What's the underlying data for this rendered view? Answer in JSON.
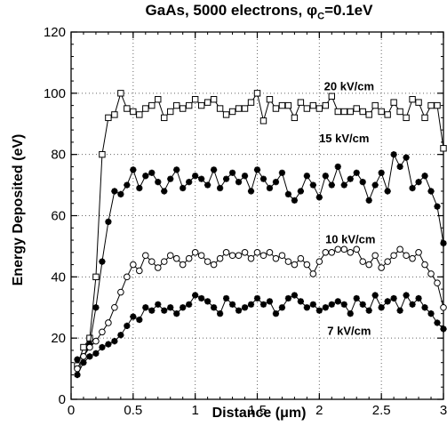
{
  "chart_data": {
    "type": "line",
    "title_parts": [
      "GaAs, 5000 electrons, ",
      "φ",
      "C",
      "=0.1eV"
    ],
    "xlabel": "Distance (μm)",
    "ylabel": "Energy Deposited (eV)",
    "xlim": [
      0,
      3
    ],
    "ylim": [
      0,
      120
    ],
    "xticks": [
      0,
      0.5,
      1,
      1.5,
      2,
      2.5,
      3
    ],
    "xtick_labels": [
      "0",
      "0.5",
      "1",
      "1.5",
      "2",
      "2.5",
      "3"
    ],
    "yticks": [
      0,
      20,
      40,
      60,
      80,
      100,
      120
    ],
    "ytick_labels": [
      "0",
      "20",
      "40",
      "60",
      "80",
      "100",
      "120"
    ],
    "grid": true,
    "series": [
      {
        "name": "20 kV/cm",
        "marker": "square",
        "label_at": [
          2.24,
          101
        ],
        "x": [
          0.05,
          0.1,
          0.15,
          0.2,
          0.25,
          0.3,
          0.35,
          0.4,
          0.45,
          0.5,
          0.55,
          0.6,
          0.65,
          0.7,
          0.75,
          0.8,
          0.85,
          0.9,
          0.95,
          1.0,
          1.05,
          1.1,
          1.15,
          1.2,
          1.25,
          1.3,
          1.35,
          1.4,
          1.45,
          1.5,
          1.55,
          1.6,
          1.65,
          1.7,
          1.75,
          1.8,
          1.85,
          1.9,
          1.95,
          2.0,
          2.05,
          2.1,
          2.15,
          2.2,
          2.25,
          2.3,
          2.35,
          2.4,
          2.45,
          2.5,
          2.55,
          2.6,
          2.65,
          2.7,
          2.75,
          2.8,
          2.85,
          2.9,
          2.95,
          3.0
        ],
        "y": [
          11,
          17,
          20,
          40,
          80,
          92,
          93,
          100,
          95,
          94,
          93,
          95,
          96,
          98,
          92,
          94,
          96,
          95,
          96,
          98,
          96,
          97,
          98,
          95,
          93,
          94,
          95,
          95,
          97,
          100,
          91,
          98,
          95,
          96,
          96,
          92,
          97,
          95,
          96,
          95,
          96,
          99,
          94,
          94,
          94,
          95,
          94,
          93,
          96,
          94,
          93,
          97,
          94,
          92,
          98,
          97,
          92,
          96,
          96,
          82
        ]
      },
      {
        "name": "15 kV/cm",
        "marker": "star",
        "label_at": [
          2.2,
          84
        ],
        "x": [
          0.05,
          0.1,
          0.15,
          0.2,
          0.25,
          0.3,
          0.35,
          0.4,
          0.45,
          0.5,
          0.55,
          0.6,
          0.65,
          0.7,
          0.75,
          0.8,
          0.85,
          0.9,
          0.95,
          1.0,
          1.05,
          1.1,
          1.15,
          1.2,
          1.25,
          1.3,
          1.35,
          1.4,
          1.45,
          1.5,
          1.55,
          1.6,
          1.65,
          1.7,
          1.75,
          1.8,
          1.85,
          1.9,
          1.95,
          2.0,
          2.05,
          2.1,
          2.15,
          2.2,
          2.25,
          2.3,
          2.35,
          2.4,
          2.45,
          2.5,
          2.55,
          2.6,
          2.65,
          2.7,
          2.75,
          2.8,
          2.85,
          2.9,
          2.95,
          3.0
        ],
        "y": [
          13,
          14,
          18,
          30,
          45,
          58,
          68,
          67,
          70,
          75,
          69,
          73,
          74,
          71,
          68,
          72,
          75,
          69,
          71,
          73,
          72,
          70,
          75,
          69,
          72,
          74,
          71,
          73,
          68,
          75,
          72,
          69,
          71,
          74,
          67,
          65,
          68,
          73,
          70,
          66,
          73,
          70,
          76,
          70,
          72,
          74,
          71,
          65,
          70,
          74,
          68,
          80,
          76,
          79,
          69,
          71,
          73,
          68,
          63,
          51
        ]
      },
      {
        "name": "10 kV/cm",
        "marker": "circle",
        "label_at": [
          2.25,
          51
        ],
        "x": [
          0.05,
          0.1,
          0.15,
          0.2,
          0.25,
          0.3,
          0.35,
          0.4,
          0.45,
          0.5,
          0.55,
          0.6,
          0.65,
          0.7,
          0.75,
          0.8,
          0.85,
          0.9,
          0.95,
          1.0,
          1.05,
          1.1,
          1.15,
          1.2,
          1.25,
          1.3,
          1.35,
          1.4,
          1.45,
          1.5,
          1.55,
          1.6,
          1.65,
          1.7,
          1.75,
          1.8,
          1.85,
          1.9,
          1.95,
          2.0,
          2.05,
          2.1,
          2.15,
          2.2,
          2.25,
          2.3,
          2.35,
          2.4,
          2.45,
          2.5,
          2.55,
          2.6,
          2.65,
          2.7,
          2.75,
          2.8,
          2.85,
          2.9,
          2.95,
          3.0
        ],
        "y": [
          10,
          14,
          17,
          19,
          22,
          25,
          30,
          35,
          40,
          44,
          42,
          47,
          45,
          43,
          45,
          47,
          46,
          44,
          46,
          48,
          47,
          45,
          44,
          46,
          48,
          47,
          47,
          48,
          46,
          48,
          47,
          48,
          46,
          47,
          45,
          44,
          46,
          44,
          41,
          45,
          48,
          48,
          49,
          49,
          48,
          49,
          45,
          44,
          47,
          43,
          45,
          47,
          49,
          47,
          46,
          48,
          44,
          41,
          38,
          30
        ]
      },
      {
        "name": "7 kV/cm",
        "marker": "star",
        "label_at": [
          2.24,
          21
        ],
        "x": [
          0.05,
          0.1,
          0.15,
          0.2,
          0.25,
          0.3,
          0.35,
          0.4,
          0.45,
          0.5,
          0.55,
          0.6,
          0.65,
          0.7,
          0.75,
          0.8,
          0.85,
          0.9,
          0.95,
          1.0,
          1.05,
          1.1,
          1.15,
          1.2,
          1.25,
          1.3,
          1.35,
          1.4,
          1.45,
          1.5,
          1.55,
          1.6,
          1.65,
          1.7,
          1.75,
          1.8,
          1.85,
          1.9,
          1.95,
          2.0,
          2.05,
          2.1,
          2.15,
          2.2,
          2.25,
          2.3,
          2.35,
          2.4,
          2.45,
          2.5,
          2.55,
          2.6,
          2.65,
          2.7,
          2.75,
          2.8,
          2.85,
          2.9,
          2.95,
          3.0
        ],
        "y": [
          8,
          12,
          14,
          15,
          17,
          18,
          19,
          21,
          24,
          27,
          26,
          30,
          29,
          31,
          29,
          30,
          28,
          30,
          31,
          34,
          33,
          32,
          30,
          28,
          33,
          31,
          29,
          30,
          31,
          33,
          31,
          32,
          28,
          30,
          33,
          34,
          32,
          30,
          31,
          29,
          30,
          31,
          32,
          31,
          28,
          33,
          31,
          29,
          34,
          30,
          32,
          33,
          29,
          34,
          31,
          33,
          30,
          28,
          25,
          23
        ]
      }
    ]
  }
}
